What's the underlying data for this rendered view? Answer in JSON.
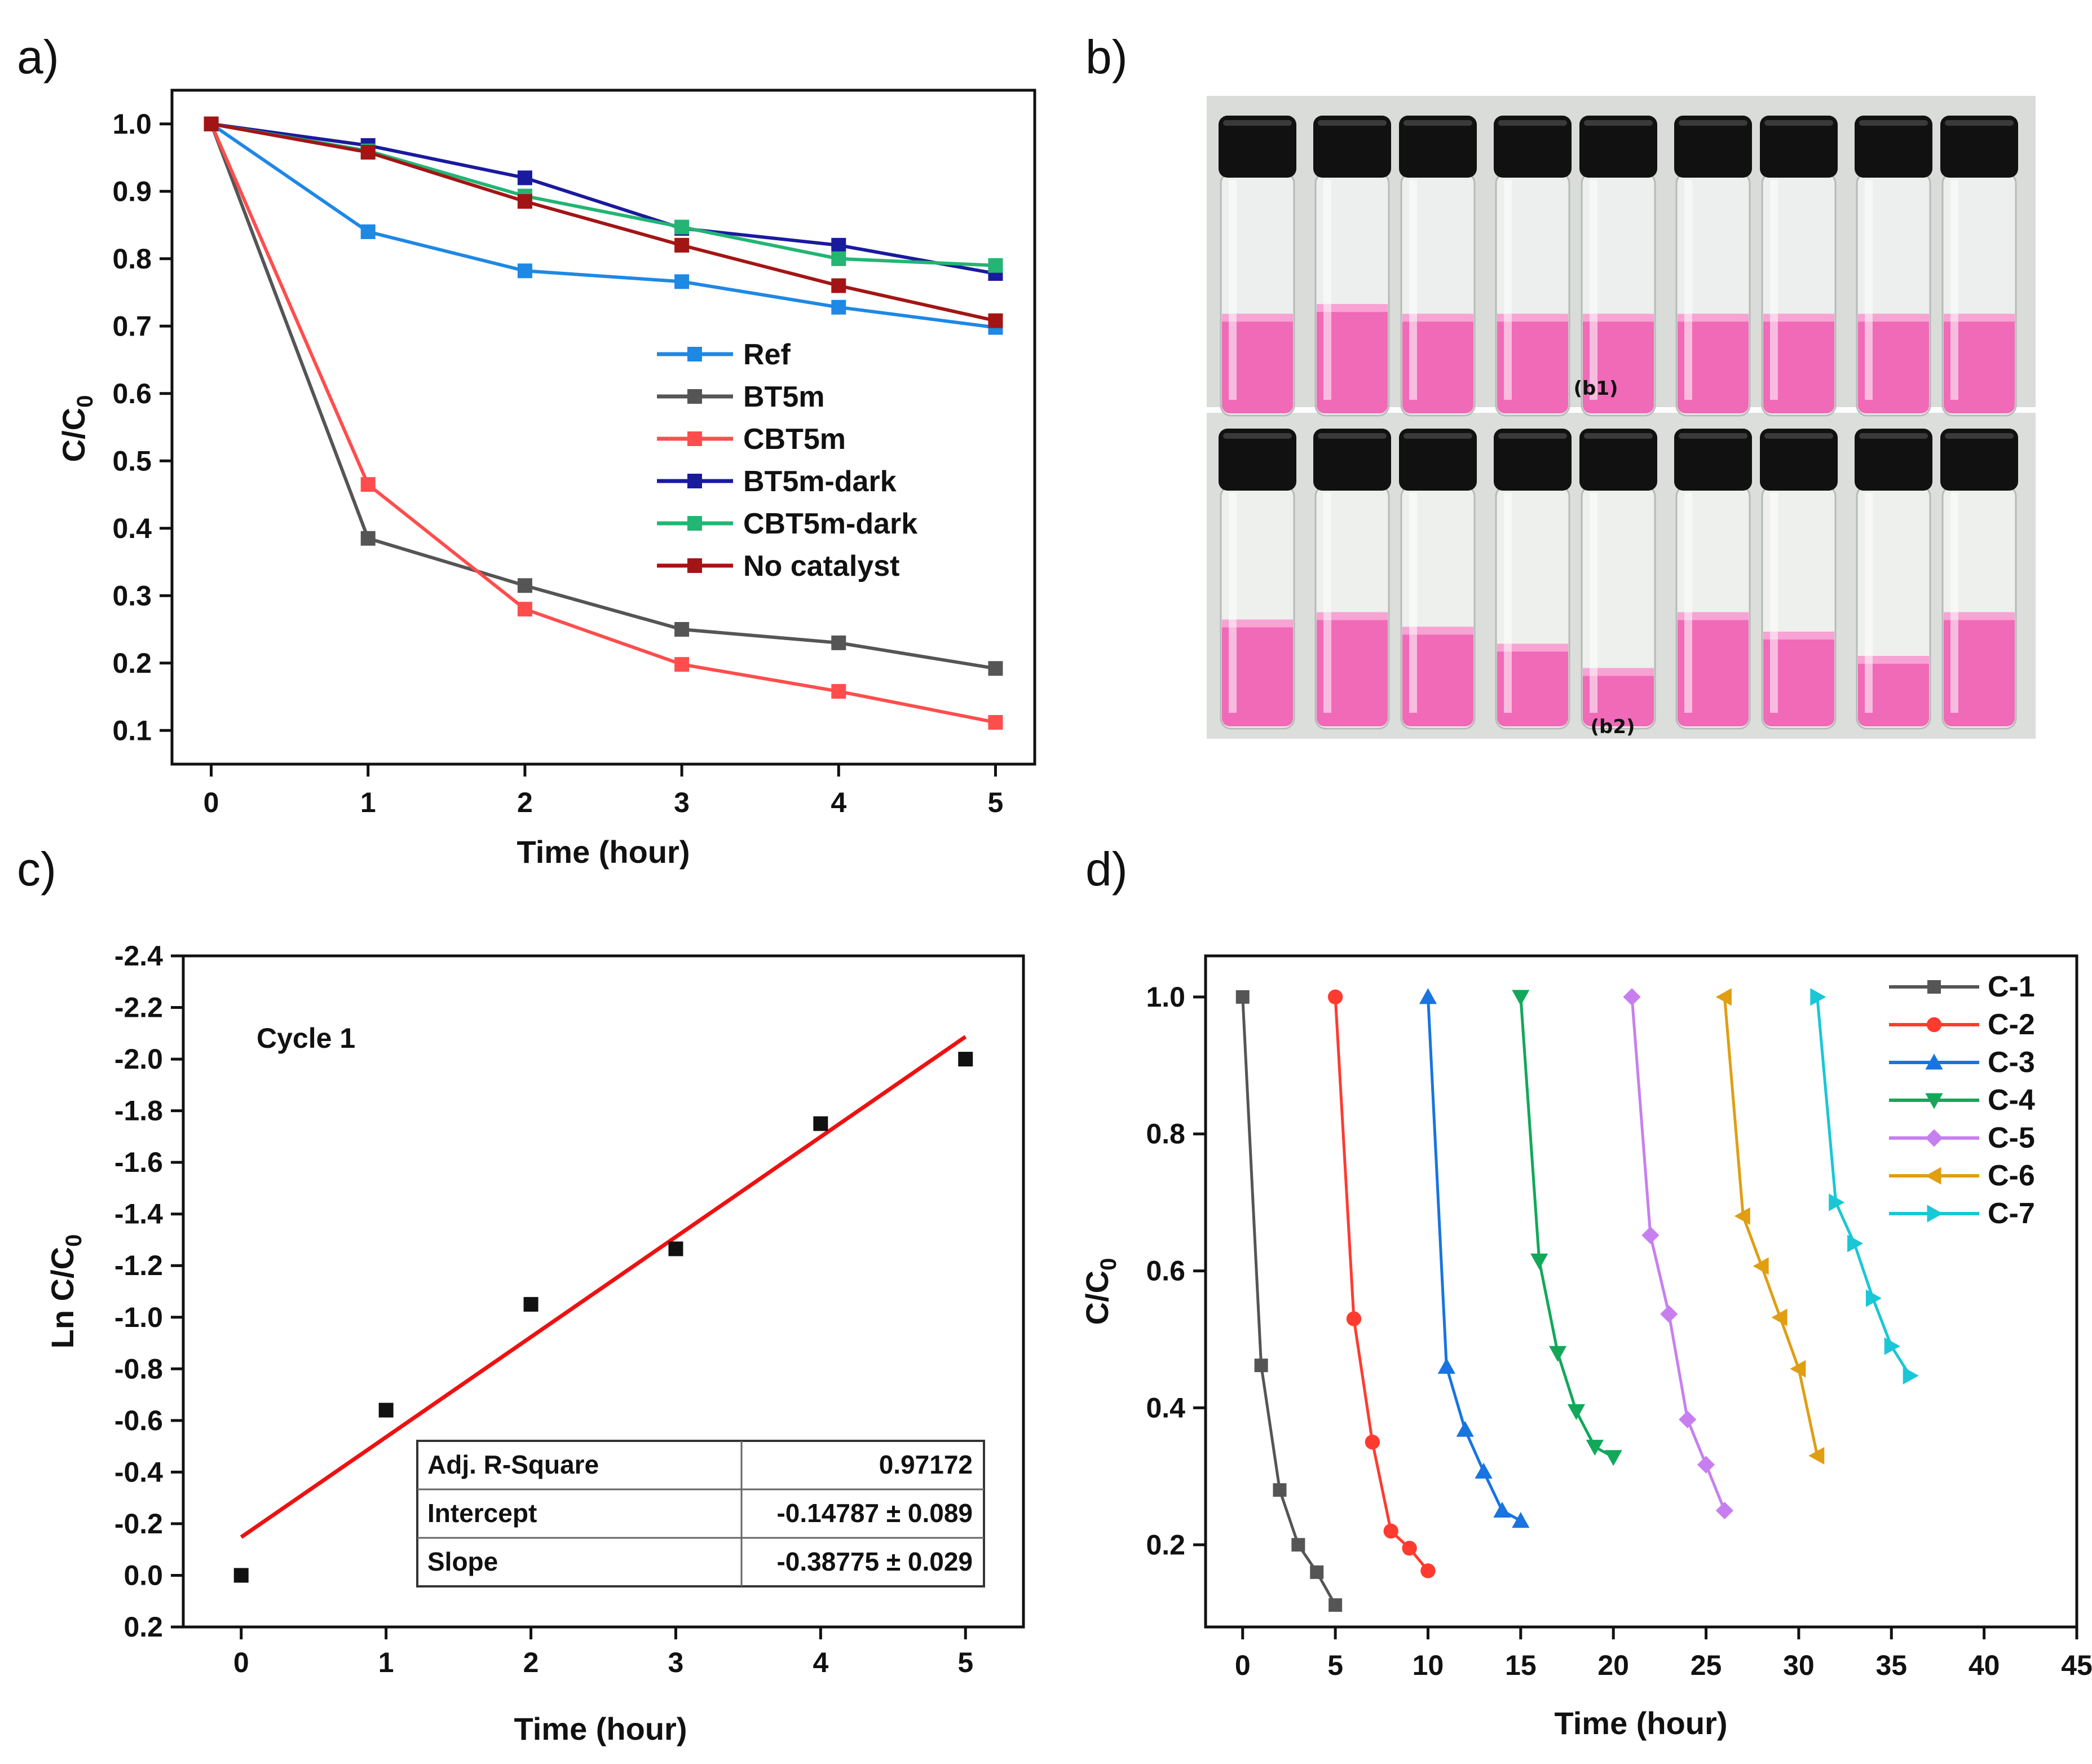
{
  "panel_labels": [
    "a)",
    "b)",
    "c)",
    "d)"
  ],
  "colors": {
    "Ref": "#1e88e5",
    "BT5m": "#555555",
    "CBT5m": "#ff4d4d",
    "BT5m-dark": "#1a1a9e",
    "CBT5m-dark": "#22b573",
    "No catalyst": "#a31515",
    "C-1": "#555555",
    "C-2": "#ff3b30",
    "C-3": "#1874e0",
    "C-4": "#11a85a",
    "C-5": "#c77ff0",
    "C-6": "#e09e12",
    "C-7": "#19c7d6",
    "fit_line": "#ee1111",
    "solution": "#f06ab8",
    "cap": "#111111"
  },
  "chart_data": [
    {
      "id": "a",
      "type": "line",
      "xlabel": "Time (hour)",
      "ylabel_main": "C/C",
      "ylabel_sub": "0",
      "xlim": [
        -0.25,
        5.25
      ],
      "ylim": [
        0.05,
        1.05
      ],
      "xticks": [
        0,
        1,
        2,
        3,
        4,
        5
      ],
      "yticks": [
        0.1,
        0.2,
        0.3,
        0.4,
        0.5,
        0.6,
        0.7,
        0.8,
        0.9,
        1.0
      ],
      "ytick_labels": [
        "0.1",
        "0.2",
        "0.3",
        "0.4",
        "0.5",
        "0.6",
        "0.7",
        "0.8",
        "0.9",
        "1.0"
      ],
      "legend_position": "center-right",
      "x": [
        0,
        1,
        2,
        3,
        4,
        5
      ],
      "series": [
        {
          "name": "Ref",
          "values": [
            1.0,
            0.84,
            0.782,
            0.766,
            0.728,
            0.698
          ]
        },
        {
          "name": "BT5m",
          "values": [
            1.0,
            0.385,
            0.315,
            0.25,
            0.23,
            0.192
          ]
        },
        {
          "name": "CBT5m",
          "values": [
            1.0,
            0.465,
            0.28,
            0.198,
            0.158,
            0.112
          ]
        },
        {
          "name": "BT5m-dark",
          "values": [
            1.0,
            0.968,
            0.92,
            0.845,
            0.82,
            0.778
          ]
        },
        {
          "name": "CBT5m-dark",
          "values": [
            1.0,
            0.96,
            0.893,
            0.847,
            0.8,
            0.79
          ]
        },
        {
          "name": "No catalyst",
          "values": [
            1.0,
            0.958,
            0.885,
            0.82,
            0.76,
            0.708
          ]
        }
      ]
    },
    {
      "id": "c",
      "type": "scatter",
      "xlabel": "Time (hour)",
      "ylabel": "Ln C/C",
      "ylabel_sub": "0",
      "xlim": [
        -0.4,
        5.4
      ],
      "ylim": [
        -2.4,
        0.2
      ],
      "xticks": [
        0,
        1,
        2,
        3,
        4,
        5
      ],
      "yticks": [
        -2.4,
        -2.2,
        -2.0,
        -1.8,
        -1.6,
        -1.4,
        -1.2,
        -1.0,
        -0.8,
        -0.6,
        -0.4,
        -0.2,
        0.0,
        0.2
      ],
      "ytick_labels": [
        "-2.4",
        "-2.2",
        "-2.0",
        "-1.8",
        "-1.6",
        "-1.4",
        "-1.2",
        "-1.0",
        "-0.8",
        "-0.6",
        "-0.4",
        "-0.2",
        "0.0",
        "0.2"
      ],
      "y_axis_inverted": true,
      "annotation": "Cycle 1",
      "points": {
        "x": [
          0,
          1,
          2,
          3,
          4,
          5
        ],
        "y": [
          0.0,
          -0.64,
          -1.05,
          -1.265,
          -1.75,
          -2.0
        ]
      },
      "fit": {
        "intercept": -0.14787,
        "slope": -0.38775,
        "x_range": [
          0,
          5
        ]
      },
      "table": [
        [
          "Adj. R-Square",
          "0.97172"
        ],
        [
          "Intercept",
          "-0.14787 ± 0.089"
        ],
        [
          "Slope",
          "-0.38775 ± 0.029"
        ]
      ]
    },
    {
      "id": "d",
      "type": "line",
      "xlabel": "Time (hour)",
      "ylabel_main": "C/C",
      "ylabel_sub": "0",
      "xlim": [
        -2,
        45
      ],
      "ylim": [
        0.08,
        1.06
      ],
      "xticks": [
        0,
        5,
        10,
        15,
        20,
        25,
        30,
        35,
        40,
        45
      ],
      "yticks": [
        0.2,
        0.4,
        0.6,
        0.8,
        1.0
      ],
      "ytick_labels": [
        "0.2",
        "0.4",
        "0.6",
        "0.8",
        "1.0"
      ],
      "legend_position": "top-right",
      "series": [
        {
          "name": "C-1",
          "marker": "square",
          "x": [
            0,
            1,
            2,
            3,
            4,
            5
          ],
          "values": [
            1.0,
            0.462,
            0.28,
            0.2,
            0.16,
            0.112
          ]
        },
        {
          "name": "C-2",
          "marker": "circle",
          "x": [
            5,
            6,
            7,
            8,
            9,
            10
          ],
          "values": [
            1.0,
            0.53,
            0.35,
            0.22,
            0.195,
            0.162
          ]
        },
        {
          "name": "C-3",
          "marker": "triangle-up",
          "x": [
            10,
            11,
            12,
            13,
            14,
            15
          ],
          "values": [
            1.0,
            0.46,
            0.368,
            0.307,
            0.25,
            0.235
          ]
        },
        {
          "name": "C-4",
          "marker": "triangle-down",
          "x": [
            15,
            16,
            17,
            18,
            19,
            20
          ],
          "values": [
            1.0,
            0.615,
            0.48,
            0.395,
            0.343,
            0.328
          ]
        },
        {
          "name": "C-5",
          "marker": "diamond",
          "x": [
            21,
            22,
            23,
            24,
            25,
            26
          ],
          "values": [
            1.0,
            0.652,
            0.537,
            0.383,
            0.317,
            0.25
          ]
        },
        {
          "name": "C-6",
          "marker": "triangle-left",
          "x": [
            26,
            27,
            28,
            29,
            30,
            31
          ],
          "values": [
            1.0,
            0.68,
            0.607,
            0.532,
            0.457,
            0.33
          ]
        },
        {
          "name": "C-7",
          "marker": "triangle-right",
          "x": [
            31,
            32,
            33,
            34,
            35,
            36
          ],
          "values": [
            1.0,
            0.7,
            0.64,
            0.56,
            0.49,
            0.447
          ]
        }
      ]
    }
  ],
  "photo": {
    "label_top": "(b1)",
    "label_bottom": "(b2)",
    "top_row_liquid_levels": [
      0.42,
      0.46,
      0.42,
      0.42,
      0.42,
      0.42,
      0.42,
      0.42,
      0.42
    ],
    "bottom_row_liquid_levels": [
      0.45,
      0.48,
      0.42,
      0.35,
      0.25,
      0.48,
      0.4,
      0.3,
      0.48
    ]
  }
}
